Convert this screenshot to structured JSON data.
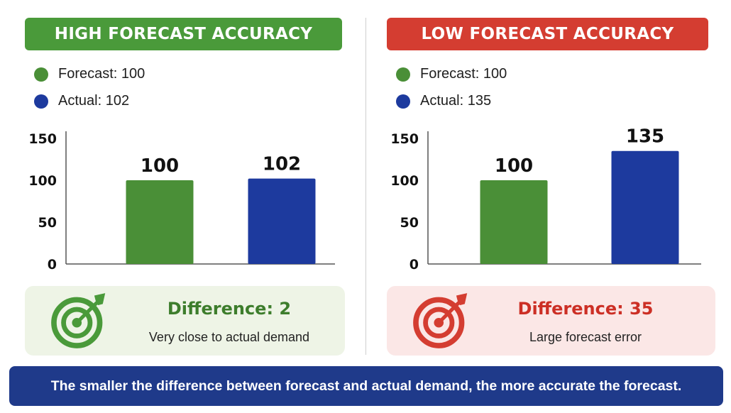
{
  "colors": {
    "forecast": "#4a8f37",
    "actual": "#1d3a9e",
    "good": "#4a9a3a",
    "bad": "#d43d31",
    "footer": "#1f3a8a",
    "axis": "#555555"
  },
  "chart_data": [
    {
      "type": "bar",
      "title": "HIGH FORECAST ACCURACY",
      "categories": [
        "Forecast",
        "Actual"
      ],
      "values": [
        100,
        102
      ],
      "value_labels": [
        "100",
        "102"
      ],
      "ylim": [
        0,
        150
      ],
      "yticks": [
        0,
        50,
        100,
        150
      ],
      "ytick_labels": [
        "0",
        "50",
        "100",
        "150"
      ],
      "grid": false,
      "legend": [
        "Forecast: 100",
        "Actual: 102"
      ],
      "legend_position": "top-left",
      "bar_colors": [
        "#4a8f37",
        "#1d3a9e"
      ]
    },
    {
      "type": "bar",
      "title": "LOW FORECAST ACCURACY",
      "categories": [
        "Forecast",
        "Actual"
      ],
      "values": [
        100,
        135
      ],
      "value_labels": [
        "100",
        "135"
      ],
      "ylim": [
        0,
        150
      ],
      "yticks": [
        0,
        50,
        100,
        150
      ],
      "ytick_labels": [
        "0",
        "50",
        "100",
        "150"
      ],
      "grid": false,
      "legend": [
        "Forecast: 100",
        "Actual: 135"
      ],
      "legend_position": "top-left",
      "bar_colors": [
        "#4a8f37",
        "#1d3a9e"
      ]
    }
  ],
  "left": {
    "header": "HIGH FORECAST ACCURACY",
    "legend_forecast": "Forecast: 100",
    "legend_actual": "Actual: 102",
    "diff_title": "Difference: 2",
    "diff_sub": "Very close to actual demand",
    "icon": "target-icon"
  },
  "right": {
    "header": "LOW FORECAST ACCURACY",
    "legend_forecast": "Forecast: 100",
    "legend_actual": "Actual: 135",
    "diff_title": "Difference: 35",
    "diff_sub": "Large forecast error",
    "icon": "target-icon"
  },
  "footer": "The smaller the difference between forecast and actual demand, the more accurate the forecast."
}
